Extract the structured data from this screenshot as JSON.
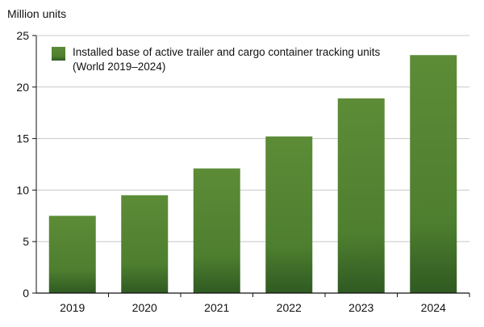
{
  "chart_data": {
    "type": "bar",
    "unit_label": "Million units",
    "legend_label": "Installed base of active trailer and cargo container tracking units",
    "legend_sublabel": "(World 2019–2024)",
    "categories": [
      "2019",
      "2020",
      "2021",
      "2022",
      "2023",
      "2024"
    ],
    "values": [
      7.5,
      9.5,
      12.1,
      15.2,
      18.9,
      23.1
    ],
    "ylim": [
      0,
      25
    ],
    "yticks": [
      0,
      5,
      10,
      15,
      20,
      25
    ],
    "grid": true,
    "legend_position": "top-left",
    "colors": {
      "bar_top": "#5d8c37",
      "bar_bottom": "#2f5a22",
      "grid": "#c8c8c8",
      "axis": "#111111"
    }
  }
}
